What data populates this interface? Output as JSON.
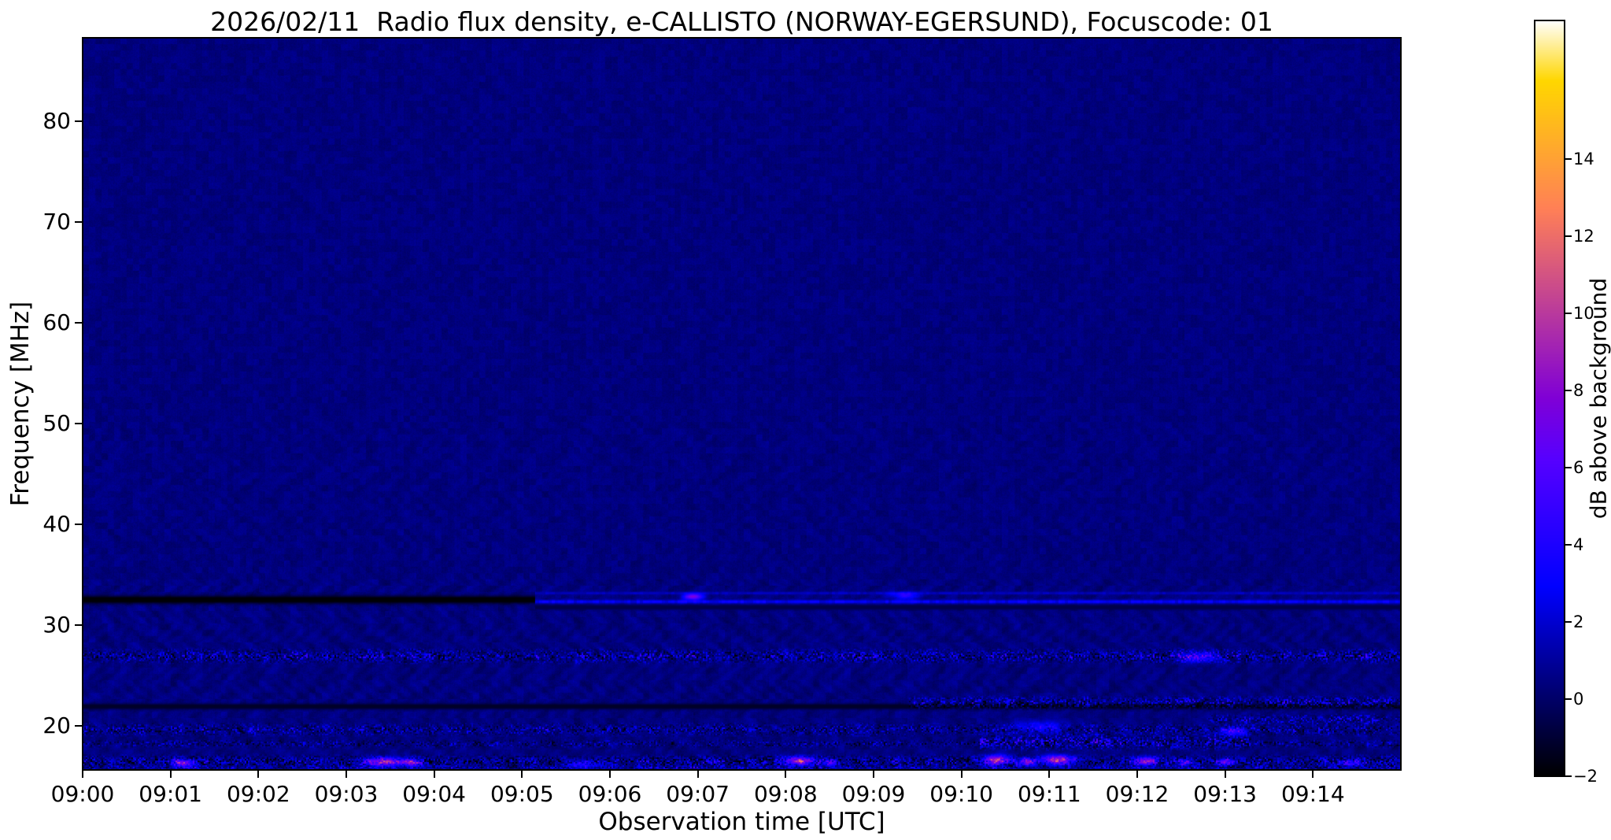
{
  "chart_data": {
    "type": "heatmap",
    "subtype": "radio-spectrogram",
    "title": "2026/02/11  Radio flux density, e-CALLISTO (NORWAY-EGERSUND), Focuscode: 01",
    "xlabel": "Observation time [UTC]",
    "ylabel": "Frequency [MHz]",
    "x_ticks": [
      "09:00",
      "09:01",
      "09:02",
      "09:03",
      "09:04",
      "09:05",
      "09:06",
      "09:07",
      "09:08",
      "09:09",
      "09:10",
      "09:11",
      "09:12",
      "09:13",
      "09:14"
    ],
    "x_tick_minutes": [
      0,
      1,
      2,
      3,
      4,
      5,
      6,
      7,
      8,
      9,
      10,
      11,
      12,
      13,
      14
    ],
    "xlim_minutes": [
      0,
      15
    ],
    "y_ticks": [
      20,
      30,
      40,
      50,
      60,
      70,
      80
    ],
    "ylim_mhz": [
      15.6,
      88.3
    ],
    "grid": false,
    "legend": false,
    "colorbar": {
      "label": "dB above background",
      "ticks": [
        -2,
        0,
        2,
        4,
        6,
        8,
        10,
        12,
        14
      ],
      "tick_labels": [
        "−2",
        "0",
        "2",
        "4",
        "6",
        "8",
        "10",
        "12",
        "14"
      ],
      "vmin": -2,
      "vmax": 17.6,
      "colormap": "gnuplot2"
    },
    "colors": {
      "text": "#000000",
      "figure_background": "#ffffff",
      "plot_base": "#0d0d8e"
    },
    "background_db": 0.4,
    "noise": {
      "mottle_db": 0.55,
      "grain_db": 0.45,
      "column_stripe_db": 0.15
    },
    "wave_texture": {
      "amplitude": 0.22,
      "kx": 0.13,
      "warp": 5,
      "ky": 0.045,
      "chevron_amp": 0.18,
      "chevron_kx": 0.3,
      "chevron_ky": 0.35,
      "chevron_rows": 24,
      "full_below_mhz": 34.5,
      "fade_below_mhz": 50,
      "mid_factor": 0.45,
      "high_factor": 0.15
    },
    "bands": [
      {
        "name": "rfi-32mhz-dark-band",
        "freq_mhz": 32.5,
        "half_width_mhz": 0.45,
        "t0": 0,
        "t1": 5.15,
        "mode": "dark",
        "level_db": -1.9,
        "seed": 11
      },
      {
        "name": "rfi-32mhz-bright-line",
        "freq_mhz": 32.3,
        "half_width_mhz": 0.22,
        "t0": 5.15,
        "t1": 15,
        "mode": "bright",
        "level_db": 2.9,
        "seed": 12
      },
      {
        "name": "rfi-33mhz-faint-line",
        "freq_mhz": 33.15,
        "half_width_mhz": 0.16,
        "t0": 5.15,
        "t1": 15,
        "mode": "bright",
        "level_db": 1.7,
        "seed": 13
      },
      {
        "name": "rfi-32mhz-shadow",
        "freq_mhz": 31.75,
        "half_width_mhz": 0.28,
        "t0": 5.15,
        "t1": 15,
        "mode": "dark",
        "level_db": -0.6,
        "seed": 14
      },
      {
        "name": "rfi-27mhz-speckle",
        "freq_mhz": 26.9,
        "half_width_mhz": 0.9,
        "t0": 0,
        "t1": 15,
        "mode": "speckle",
        "thr_hi": 0.6,
        "thr_lo": 0.3,
        "bright_db": 4.5,
        "dark_db": 2.6,
        "seed": 21
      },
      {
        "name": "rfi-22mhz-dark-line",
        "freq_mhz": 21.9,
        "half_width_mhz": 0.32,
        "t0": 0,
        "t1": 15,
        "mode": "dark",
        "level_db": -1.2,
        "seed": 31
      },
      {
        "name": "rfi-22mhz-speckle-late",
        "freq_mhz": 22.3,
        "half_width_mhz": 0.8,
        "t0": 9.4,
        "t1": 15,
        "mode": "speckle",
        "thr_hi": 0.55,
        "thr_lo": 0.25,
        "bright_db": 4.2,
        "dark_db": 2.0,
        "seed": 32
      },
      {
        "name": "rfi-20mhz-speckle",
        "freq_mhz": 19.6,
        "half_width_mhz": 0.8,
        "t0": 0,
        "t1": 15,
        "mode": "speckle",
        "thr_hi": 0.66,
        "thr_lo": 0.28,
        "bright_db": 3.2,
        "dark_db": 2.4,
        "seed": 41
      },
      {
        "name": "rfi-18mhz-speckle",
        "freq_mhz": 18.2,
        "half_width_mhz": 0.5,
        "t0": 0,
        "t1": 15,
        "mode": "speckle",
        "thr_hi": 0.7,
        "thr_lo": 0.3,
        "bright_db": 2.5,
        "dark_db": 2.2,
        "seed": 42
      },
      {
        "name": "rfi-18mhz-burst",
        "freq_mhz": 18.4,
        "half_width_mhz": 1.0,
        "t0": 10.2,
        "t1": 13.3,
        "mode": "speckle",
        "thr_hi": 0.6,
        "thr_lo": 0.32,
        "bright_db": 4.5,
        "dark_db": 2.0,
        "seed": 43
      },
      {
        "name": "rfi-21mhz-late",
        "freq_mhz": 20.6,
        "half_width_mhz": 0.7,
        "t0": 12.8,
        "t1": 15,
        "mode": "speckle",
        "thr_hi": 0.6,
        "thr_lo": 0.3,
        "bright_db": 3.5,
        "dark_db": 1.5,
        "seed": 44
      },
      {
        "name": "bottom-band-speckle",
        "freq_mhz": 16.4,
        "half_width_mhz": 0.85,
        "t0": 0,
        "t1": 15,
        "mode": "speckle",
        "thr_hi": 0.55,
        "thr_lo": 0.35,
        "bright_db": 3.5,
        "dark_db": 3.2,
        "seed": 51
      },
      {
        "name": "bottom-edge-line",
        "freq_mhz": 15.8,
        "half_width_mhz": 0.3,
        "t0": 0,
        "t1": 15,
        "mode": "speckle",
        "thr_hi": 0.5,
        "thr_lo": 0.2,
        "bright_db": 3.5,
        "dark_db": 1.0,
        "seed": 52
      }
    ],
    "blobs": [
      {
        "t_min": 1.15,
        "freq_mhz": 16.3,
        "rt_min": 0.13,
        "rf_mhz": 0.35,
        "amp_db": 7
      },
      {
        "t_min": 3.45,
        "freq_mhz": 16.4,
        "rt_min": 0.22,
        "rf_mhz": 0.4,
        "amp_db": 9
      },
      {
        "t_min": 3.75,
        "freq_mhz": 16.3,
        "rt_min": 0.1,
        "rf_mhz": 0.3,
        "amp_db": 6
      },
      {
        "t_min": 5.7,
        "freq_mhz": 16.2,
        "rt_min": 0.18,
        "rf_mhz": 0.35,
        "amp_db": 4
      },
      {
        "t_min": 8.15,
        "freq_mhz": 16.5,
        "rt_min": 0.16,
        "rf_mhz": 0.4,
        "amp_db": 8.5
      },
      {
        "t_min": 8.5,
        "freq_mhz": 16.3,
        "rt_min": 0.09,
        "rf_mhz": 0.3,
        "amp_db": 5.5
      },
      {
        "t_min": 10.4,
        "freq_mhz": 16.6,
        "rt_min": 0.14,
        "rf_mhz": 0.45,
        "amp_db": 9.5
      },
      {
        "t_min": 10.75,
        "freq_mhz": 16.4,
        "rt_min": 0.1,
        "rf_mhz": 0.35,
        "amp_db": 8
      },
      {
        "t_min": 11.1,
        "freq_mhz": 16.6,
        "rt_min": 0.18,
        "rf_mhz": 0.45,
        "amp_db": 9
      },
      {
        "t_min": 12.1,
        "freq_mhz": 16.5,
        "rt_min": 0.12,
        "rf_mhz": 0.4,
        "amp_db": 8.5
      },
      {
        "t_min": 12.55,
        "freq_mhz": 16.3,
        "rt_min": 0.08,
        "rf_mhz": 0.3,
        "amp_db": 5.5
      },
      {
        "t_min": 13.0,
        "freq_mhz": 16.4,
        "rt_min": 0.1,
        "rf_mhz": 0.3,
        "amp_db": 6
      },
      {
        "t_min": 14.4,
        "freq_mhz": 16.3,
        "rt_min": 0.15,
        "rf_mhz": 0.3,
        "amp_db": 4
      },
      {
        "t_min": 6.95,
        "freq_mhz": 32.8,
        "rt_min": 0.11,
        "rf_mhz": 0.3,
        "amp_db": 7.5
      },
      {
        "t_min": 9.35,
        "freq_mhz": 32.9,
        "rt_min": 0.16,
        "rf_mhz": 0.35,
        "amp_db": 4
      },
      {
        "t_min": 12.7,
        "freq_mhz": 26.8,
        "rt_min": 0.2,
        "rf_mhz": 0.5,
        "amp_db": 5
      },
      {
        "t_min": 13.1,
        "freq_mhz": 19.4,
        "rt_min": 0.15,
        "rf_mhz": 0.4,
        "amp_db": 4.5
      },
      {
        "t_min": 10.9,
        "freq_mhz": 19.9,
        "rt_min": 0.3,
        "rf_mhz": 0.6,
        "amp_db": 3
      }
    ]
  }
}
